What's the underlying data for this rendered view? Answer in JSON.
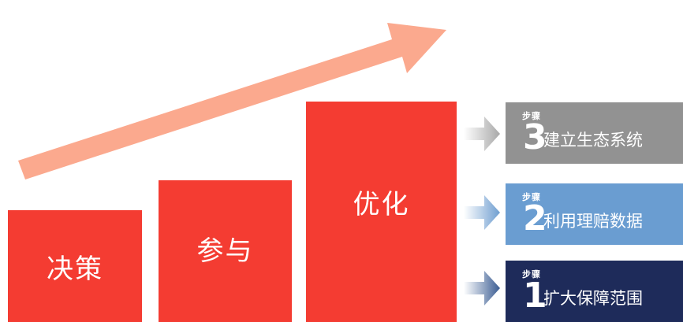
{
  "blocks": {
    "decision": "决策",
    "participate": "参与",
    "optimize": "优化"
  },
  "steps": [
    {
      "small": "步骤",
      "number": "3",
      "text": "建立生态系统"
    },
    {
      "small": "步骤",
      "number": "2",
      "text": "利用理赔数据"
    },
    {
      "small": "步骤",
      "number": "1",
      "text": "扩大保障范围"
    }
  ],
  "colors": {
    "block_red": "#f43c32",
    "growth_arrow": "#fba98e",
    "step3_bg": "#929292",
    "step2_bg": "#6a9dd1",
    "step1_bg": "#1e2b5a"
  }
}
